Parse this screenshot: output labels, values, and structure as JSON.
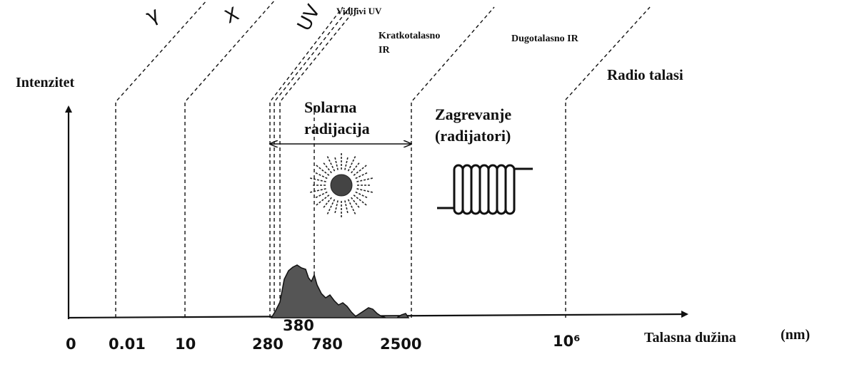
{
  "axes": {
    "y_label": "Intenzitet",
    "x_label": "Talasna dužina",
    "x_unit": "(nm)"
  },
  "ticks": [
    "0",
    "0.01",
    "10",
    "280",
    "380",
    "780",
    "2500",
    "10⁶"
  ],
  "bands": {
    "gamma": "γ",
    "x": "X",
    "uv": "UV",
    "visible": "Vidljivi UV",
    "short_ir_1": "Kratkotalasno",
    "short_ir_2": "IR",
    "long_ir": "Dugotalasno IR",
    "radio": "Radio talasi"
  },
  "regions": {
    "solar_1": "Solarna",
    "solar_2": "radijacija",
    "heating_1": "Zagrevanje",
    "heating_2": "(radijatori)"
  },
  "icons": [
    "sun-icon",
    "radiator-icon"
  ]
}
